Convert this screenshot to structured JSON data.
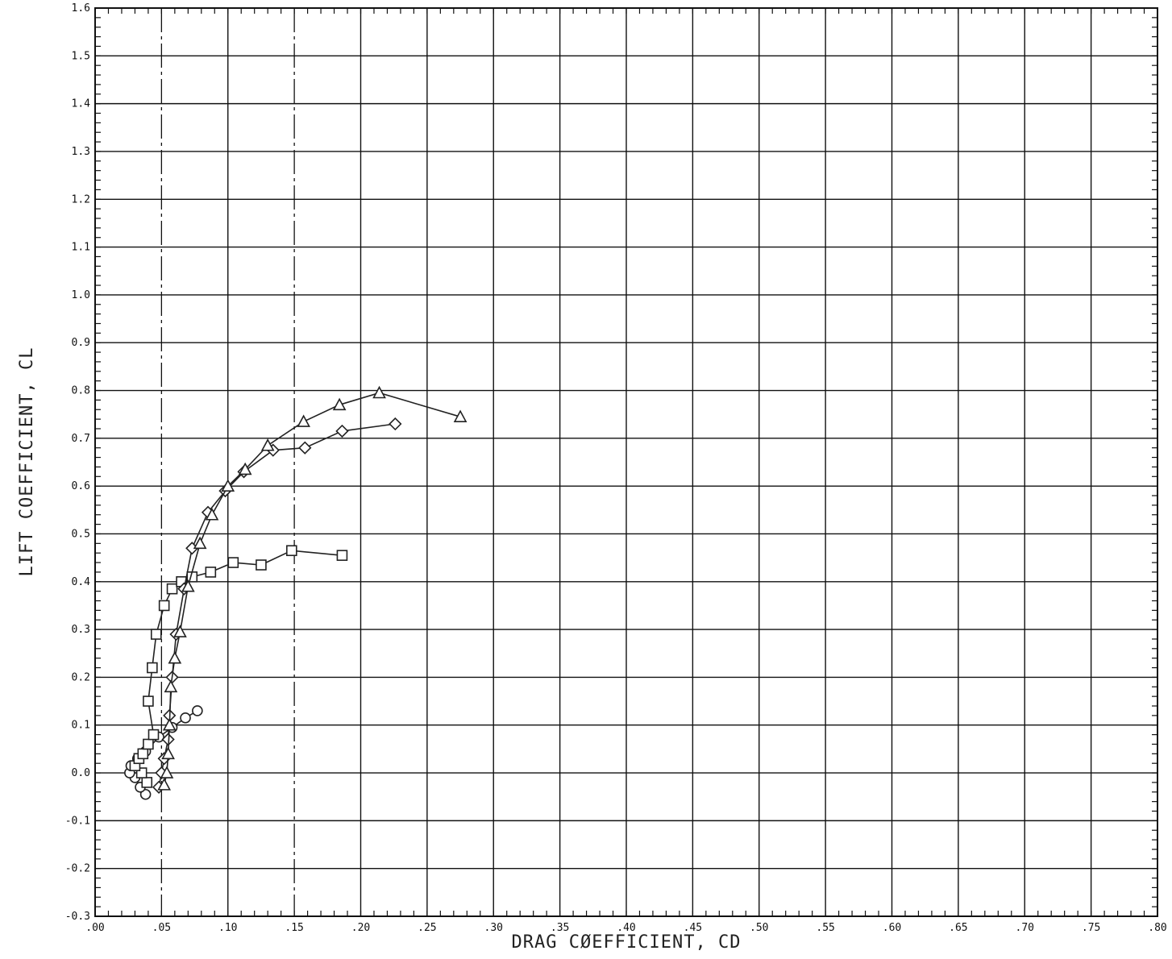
{
  "chart_data": {
    "type": "scatter",
    "title": "",
    "xlabel": "DRAG CØEFFICIENT, CD",
    "ylabel": "LIFT COEFFICIENT, CL",
    "xlim": [
      0.0,
      0.8
    ],
    "ylim": [
      -0.3,
      1.6
    ],
    "grid": true,
    "x_ticks": [
      0.0,
      0.05,
      0.1,
      0.15,
      0.2,
      0.25,
      0.3,
      0.35,
      0.4,
      0.45,
      0.5,
      0.55,
      0.6,
      0.65,
      0.7,
      0.75,
      0.8
    ],
    "x_tick_labels": [
      ".00",
      ".05",
      ".10",
      ".15",
      ".20",
      ".25",
      ".30",
      ".35",
      ".40",
      ".45",
      ".50",
      ".55",
      ".60",
      ".65",
      ".70",
      ".75",
      ".80"
    ],
    "y_ticks": [
      -0.3,
      -0.2,
      -0.1,
      0.0,
      0.1,
      0.2,
      0.3,
      0.4,
      0.5,
      0.6,
      0.7,
      0.8,
      0.9,
      1.0,
      1.1,
      1.2,
      1.3,
      1.4,
      1.5,
      1.6
    ],
    "y_tick_labels": [
      "-0.3",
      "-0.2",
      "-0.1",
      "0.0",
      "0.1",
      "0.2",
      "0.3",
      "0.4",
      "0.5",
      "0.6",
      "0.7",
      "0.8",
      "0.9",
      "1.0",
      "1.1",
      "1.2",
      "1.3",
      "1.4",
      "1.5",
      "1.6"
    ],
    "series": [
      {
        "marker": "circle",
        "points": [
          [
            0.038,
            -0.045
          ],
          [
            0.034,
            -0.03
          ],
          [
            0.03,
            -0.01
          ],
          [
            0.026,
            0.0
          ],
          [
            0.027,
            0.015
          ],
          [
            0.032,
            0.03
          ],
          [
            0.038,
            0.045
          ],
          [
            0.048,
            0.075
          ],
          [
            0.058,
            0.095
          ],
          [
            0.068,
            0.115
          ],
          [
            0.077,
            0.13
          ]
        ]
      },
      {
        "marker": "square",
        "points": [
          [
            0.039,
            -0.02
          ],
          [
            0.035,
            0.0
          ],
          [
            0.03,
            0.015
          ],
          [
            0.033,
            0.03
          ],
          [
            0.036,
            0.04
          ],
          [
            0.04,
            0.06
          ],
          [
            0.044,
            0.08
          ],
          [
            0.04,
            0.15
          ],
          [
            0.043,
            0.22
          ],
          [
            0.046,
            0.29
          ],
          [
            0.052,
            0.35
          ],
          [
            0.058,
            0.385
          ],
          [
            0.065,
            0.4
          ],
          [
            0.073,
            0.41
          ],
          [
            0.087,
            0.42
          ],
          [
            0.104,
            0.44
          ],
          [
            0.125,
            0.435
          ],
          [
            0.148,
            0.465
          ],
          [
            0.186,
            0.455
          ]
        ]
      },
      {
        "marker": "diamond",
        "points": [
          [
            0.048,
            -0.03
          ],
          [
            0.05,
            0.0
          ],
          [
            0.052,
            0.03
          ],
          [
            0.055,
            0.07
          ],
          [
            0.056,
            0.12
          ],
          [
            0.058,
            0.2
          ],
          [
            0.061,
            0.29
          ],
          [
            0.067,
            0.385
          ],
          [
            0.073,
            0.47
          ],
          [
            0.085,
            0.545
          ],
          [
            0.098,
            0.59
          ],
          [
            0.112,
            0.63
          ],
          [
            0.134,
            0.675
          ],
          [
            0.158,
            0.68
          ],
          [
            0.186,
            0.715
          ],
          [
            0.226,
            0.73
          ]
        ]
      },
      {
        "marker": "triangle",
        "points": [
          [
            0.052,
            -0.025
          ],
          [
            0.054,
            0.0
          ],
          [
            0.055,
            0.04
          ],
          [
            0.056,
            0.1
          ],
          [
            0.057,
            0.18
          ],
          [
            0.06,
            0.24
          ],
          [
            0.064,
            0.295
          ],
          [
            0.07,
            0.39
          ],
          [
            0.079,
            0.48
          ],
          [
            0.088,
            0.54
          ],
          [
            0.1,
            0.6
          ],
          [
            0.113,
            0.635
          ],
          [
            0.13,
            0.685
          ],
          [
            0.157,
            0.735
          ],
          [
            0.184,
            0.77
          ],
          [
            0.214,
            0.795
          ],
          [
            0.275,
            0.745
          ]
        ]
      }
    ]
  }
}
